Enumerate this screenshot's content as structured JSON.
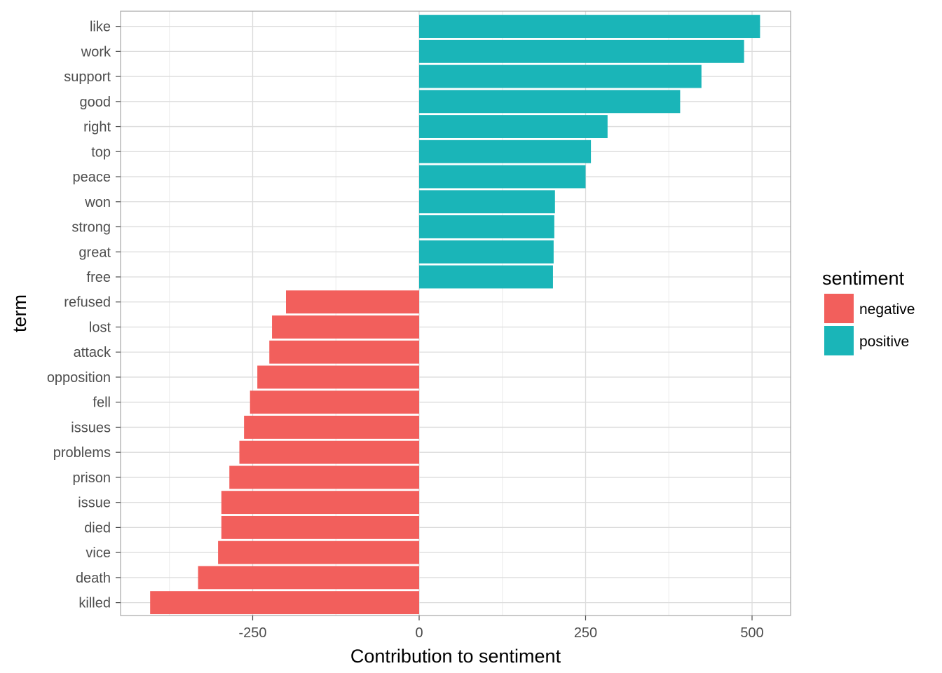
{
  "chart_data": {
    "type": "bar",
    "orientation": "horizontal",
    "xlabel": "Contribution to sentiment",
    "ylabel": "term",
    "xlim": [
      -404,
      558
    ],
    "x_ticks": [
      -250,
      0,
      250,
      500
    ],
    "x_tick_labels": [
      "-250",
      "0",
      "250",
      "500"
    ],
    "x_minor_ticks": [
      -375,
      -125,
      125,
      375
    ],
    "grid": true,
    "legend": {
      "title": "sentiment",
      "position": "right",
      "entries": [
        {
          "label": "negative",
          "color": "#F8766D"
        },
        {
          "label": "positive",
          "color": "#00BFC4"
        }
      ]
    },
    "colors": {
      "negative": "#F25F5C",
      "positive": "#1AB5B8"
    },
    "categories": [
      "like",
      "work",
      "support",
      "good",
      "right",
      "top",
      "peace",
      "won",
      "strong",
      "great",
      "free",
      "refused",
      "lost",
      "attack",
      "opposition",
      "fell",
      "issues",
      "problems",
      "prison",
      "issue",
      "died",
      "vice",
      "death",
      "killed"
    ],
    "sentiment": [
      "positive",
      "positive",
      "positive",
      "positive",
      "positive",
      "positive",
      "positive",
      "positive",
      "positive",
      "positive",
      "positive",
      "negative",
      "negative",
      "negative",
      "negative",
      "negative",
      "negative",
      "negative",
      "negative",
      "negative",
      "negative",
      "negative",
      "negative",
      "negative"
    ],
    "values": [
      512,
      488,
      424,
      392,
      283,
      258,
      250,
      204,
      203,
      202,
      201,
      -200,
      -221,
      -225,
      -243,
      -254,
      -263,
      -270,
      -285,
      -297,
      -297,
      -302,
      -332,
      -404
    ]
  }
}
